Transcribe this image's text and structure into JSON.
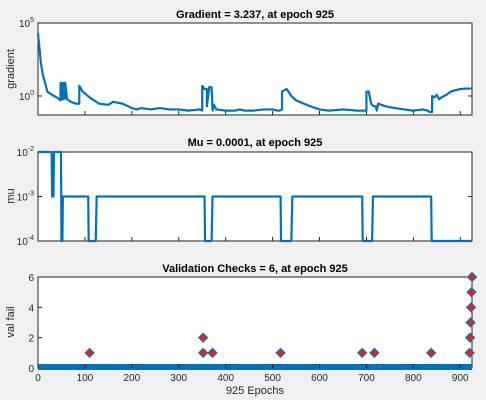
{
  "colors": {
    "line": "#0072bd",
    "marker_fill": "#d62728",
    "marker_edge": "#0072bd",
    "axes_bg": "#ffffff",
    "figure_bg": "#f0f0f0"
  },
  "xlabel": "925 Epochs",
  "chart_data": [
    {
      "type": "line",
      "title": "Gradient = 3.237, at epoch 925",
      "ylabel": "gradient",
      "yscale": "log",
      "xlim": [
        0,
        925
      ],
      "ylim": [
        0.05,
        100000
      ],
      "yticks": [
        {
          "base": "10",
          "exp": "5",
          "value": 100000
        },
        {
          "base": "10",
          "exp": "0",
          "value": 1
        }
      ],
      "x": [
        0,
        3,
        6,
        10,
        15,
        20,
        30,
        40,
        45,
        48,
        48,
        52,
        52,
        55,
        55,
        58,
        58,
        62,
        70,
        80,
        88,
        88,
        90,
        95,
        100,
        110,
        130,
        150,
        160,
        180,
        200,
        210,
        220,
        240,
        260,
        280,
        300,
        320,
        345,
        350,
        350,
        355,
        360,
        360,
        365,
        370,
        372,
        375,
        380,
        400,
        420,
        430,
        440,
        460,
        480,
        500,
        510,
        515,
        520,
        520,
        530,
        540,
        550,
        580,
        600,
        620,
        650,
        680,
        690,
        695,
        700,
        700,
        705,
        710,
        715,
        720,
        722,
        725,
        740,
        760,
        780,
        800,
        820,
        830,
        835,
        840,
        840,
        845,
        850,
        855,
        860,
        870,
        880,
        890,
        900,
        910,
        920,
        925
      ],
      "y": [
        20000,
        2000,
        200,
        30,
        8,
        2,
        1.2,
        0.8,
        0.6,
        0.5,
        8,
        0.6,
        8,
        0.6,
        8,
        0.7,
        8,
        0.6,
        0.4,
        0.3,
        0.3,
        5,
        4,
        2,
        1.5,
        0.8,
        0.3,
        0.25,
        0.4,
        0.3,
        0.15,
        0.12,
        0.15,
        0.12,
        0.15,
        0.12,
        0.12,
        0.1,
        0.12,
        0.1,
        5,
        3,
        3,
        0.2,
        4,
        4,
        0.1,
        0.25,
        0.12,
        0.1,
        0.1,
        0.12,
        0.1,
        0.1,
        0.12,
        0.12,
        0.1,
        0.1,
        0.12,
        2,
        3,
        1,
        0.5,
        0.2,
        0.12,
        0.1,
        0.12,
        0.1,
        0.1,
        0.1,
        0.1,
        2,
        2,
        0.3,
        0.2,
        0.2,
        0.1,
        0.3,
        0.2,
        0.15,
        0.12,
        0.1,
        0.12,
        0.1,
        0.08,
        0.08,
        1,
        0.8,
        1.2,
        0.6,
        0.8,
        1.2,
        2,
        2.5,
        3,
        3.2,
        3.237,
        3.237
      ]
    },
    {
      "type": "line",
      "title": "Mu = 0.0001, at epoch 925",
      "ylabel": "mu",
      "yscale": "log",
      "xlim": [
        0,
        925
      ],
      "ylim": [
        0.0001,
        0.01
      ],
      "yticks": [
        {
          "base": "10",
          "exp": "-2",
          "value": 0.01
        },
        {
          "base": "10",
          "exp": "-3",
          "value": 0.001
        },
        {
          "base": "10",
          "exp": "-4",
          "value": 0.0001
        }
      ],
      "x": [
        0,
        29,
        30,
        33,
        34,
        36,
        36,
        49,
        50,
        52,
        53,
        107,
        108,
        110,
        112,
        123,
        125,
        355,
        356,
        357,
        358,
        370,
        372,
        517,
        518,
        519,
        520,
        540,
        542,
        691,
        692,
        693,
        694,
        712,
        714,
        838,
        839,
        840,
        841,
        925
      ],
      "y": [
        0.01,
        0.01,
        0.001,
        0.001,
        0.01,
        0.01,
        0.01,
        0.01,
        0.0001,
        0.0001,
        0.001,
        0.001,
        0.0001,
        0.0001,
        0.0001,
        0.0001,
        0.001,
        0.001,
        0.0001,
        0.0001,
        0.0001,
        0.0001,
        0.001,
        0.001,
        0.0001,
        0.0001,
        0.0001,
        0.0001,
        0.001,
        0.001,
        0.0001,
        0.0001,
        0.0001,
        0.0001,
        0.001,
        0.001,
        0.0001,
        0.0001,
        0.0001,
        0.0001
      ]
    },
    {
      "type": "scatter",
      "title": "Validation Checks = 6, at epoch 925",
      "ylabel": "val fail",
      "xlim": [
        0,
        925
      ],
      "ylim": [
        0,
        6
      ],
      "yticks": [
        0,
        2,
        4,
        6
      ],
      "xticks": [
        0,
        100,
        200,
        300,
        400,
        500,
        600,
        700,
        800,
        900
      ],
      "baseline": {
        "x_start": 0,
        "x_end": 925,
        "value": 0
      },
      "points": [
        {
          "x": 110,
          "y": 1
        },
        {
          "x": 352,
          "y": 2
        },
        {
          "x": 352,
          "y": 1
        },
        {
          "x": 372,
          "y": 1
        },
        {
          "x": 517,
          "y": 1
        },
        {
          "x": 691,
          "y": 1
        },
        {
          "x": 717,
          "y": 1
        },
        {
          "x": 838,
          "y": 1
        },
        {
          "x": 920,
          "y": 1
        },
        {
          "x": 921,
          "y": 2
        },
        {
          "x": 922,
          "y": 3
        },
        {
          "x": 923,
          "y": 4
        },
        {
          "x": 924,
          "y": 5
        },
        {
          "x": 925,
          "y": 6
        }
      ]
    }
  ]
}
